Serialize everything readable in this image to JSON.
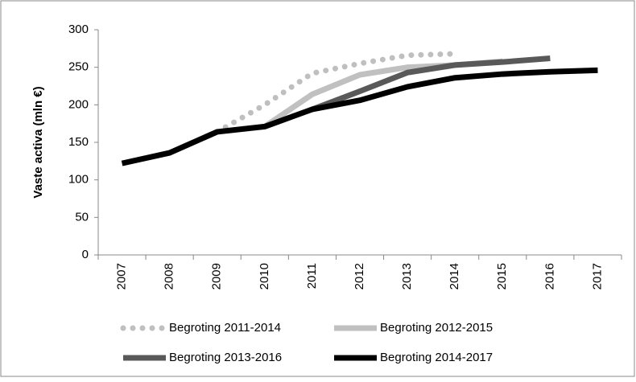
{
  "chart_data": {
    "type": "line",
    "y_label": "Vaste activa (mln €)",
    "categories": [
      "2007",
      "2008",
      "2009",
      "2010",
      "2011",
      "2012",
      "2013",
      "2014",
      "2015",
      "2016",
      "2017"
    ],
    "series": [
      {
        "name": "Begroting 2011-2014",
        "color": "#bfbfbf",
        "style": "dotted",
        "values": [
          null,
          null,
          164,
          200,
          242,
          255,
          266,
          268,
          null,
          null,
          null
        ]
      },
      {
        "name": "Begroting 2012-2015",
        "color": "#c0c0c0",
        "style": "solid",
        "values": [
          null,
          null,
          null,
          171,
          214,
          240,
          250,
          253,
          258,
          null,
          null
        ]
      },
      {
        "name": "Begroting 2013-2016",
        "color": "#595959",
        "style": "solid",
        "values": [
          null,
          null,
          null,
          null,
          194,
          218,
          243,
          253,
          257,
          262,
          null
        ]
      },
      {
        "name": "Begroting 2014-2017",
        "color": "#000000",
        "style": "solid",
        "values": [
          122,
          136,
          164,
          171,
          194,
          206,
          224,
          236,
          241,
          244,
          246
        ]
      }
    ],
    "ylim": [
      0,
      300
    ],
    "yticks": [
      0,
      50,
      100,
      150,
      200,
      250,
      300
    ],
    "grid": false
  }
}
